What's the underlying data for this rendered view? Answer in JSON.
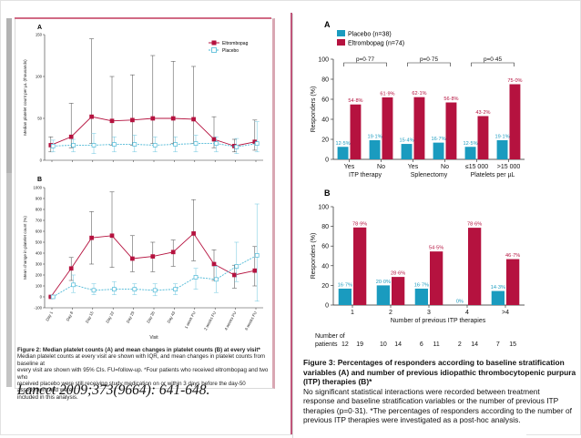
{
  "citation": "Lancet 2009;373(9664): 641-648.",
  "figure2": {
    "caption_title": "Figure 2: Median platelet counts (A) and mean changes in platelet counts (B) at every visit*",
    "caption_lines": [
      "Median platelet counts at every visit are shown with IQR, and mean changes in platelet counts from baseline at",
      "every visit are shown with 95% CIs. FU=follow-up. *Four patients who received eltrombopag and two who",
      "received placebo were still receiving study medication on or within 3 days before the day-50 assessment and were",
      "included in this analysis."
    ],
    "panel_a_label": "A",
    "panel_b_label": "B",
    "legend": [
      "Eltrombopag",
      "Placebo"
    ],
    "visits": [
      "Day 1",
      "Day 8",
      "Day 15",
      "Day 22",
      "Day 29",
      "Day 36",
      "Day 43",
      "1 week FU",
      "2 weeks FU",
      "4 weeks FU",
      "6 weeks FU"
    ],
    "colors": {
      "eltrombopag": "#b5123f",
      "placebo": "#4bb8d6"
    }
  },
  "chart_data": [
    {
      "type": "line",
      "title": "A",
      "xlabel": "",
      "ylabel": "Median platelet count per µL (thousands)",
      "ylim": [
        0,
        150
      ],
      "yticks": [
        0,
        50,
        100,
        150
      ],
      "categories": [
        "Day 1",
        "Day 8",
        "Day 15",
        "Day 22",
        "Day 29",
        "Day 36",
        "Day 43",
        "1 week FU",
        "2 weeks FU",
        "4 weeks FU",
        "6 weeks FU"
      ],
      "series": [
        {
          "name": "Eltrombopag",
          "values": [
            18,
            28,
            52,
            47,
            48,
            50,
            50,
            49,
            25,
            17,
            22
          ],
          "low": [
            10,
            15,
            20,
            18,
            18,
            20,
            20,
            20,
            15,
            10,
            12
          ],
          "high": [
            28,
            68,
            145,
            100,
            102,
            125,
            118,
            112,
            52,
            25,
            48
          ]
        },
        {
          "name": "Placebo",
          "values": [
            17,
            18,
            18,
            19,
            19,
            18,
            19,
            20,
            20,
            16,
            20
          ],
          "low": [
            10,
            10,
            8,
            10,
            10,
            10,
            10,
            10,
            10,
            8,
            10
          ],
          "high": [
            24,
            25,
            32,
            28,
            30,
            28,
            28,
            30,
            28,
            26,
            46
          ]
        }
      ]
    },
    {
      "type": "line",
      "title": "B",
      "xlabel": "Visit",
      "ylabel": "Mean change in platelet count (%)",
      "ylim": [
        -100,
        1000
      ],
      "yticks": [
        -100,
        0,
        100,
        200,
        300,
        400,
        500,
        600,
        700,
        800,
        900,
        1000
      ],
      "categories": [
        "Day 1",
        "Day 8",
        "Day 15",
        "Day 22",
        "Day 29",
        "Day 36",
        "Day 43",
        "1 week FU",
        "2 weeks FU",
        "4 weeks FU",
        "6 weeks FU"
      ],
      "series": [
        {
          "name": "Eltrombopag",
          "values": [
            0,
            260,
            540,
            560,
            350,
            370,
            410,
            580,
            300,
            200,
            240
          ],
          "low": [
            0,
            150,
            300,
            270,
            230,
            230,
            280,
            330,
            150,
            80,
            100
          ],
          "high": [
            0,
            360,
            780,
            960,
            560,
            500,
            520,
            890,
            430,
            290,
            460
          ]
        },
        {
          "name": "Placebo",
          "values": [
            0,
            110,
            60,
            70,
            70,
            60,
            70,
            180,
            160,
            280,
            380
          ],
          "low": [
            0,
            40,
            20,
            20,
            20,
            10,
            20,
            70,
            40,
            140,
            -40
          ],
          "high": [
            0,
            200,
            120,
            140,
            120,
            120,
            120,
            260,
            280,
            500,
            850
          ]
        }
      ]
    },
    {
      "type": "bar",
      "title": "A",
      "ylabel": "Responders (%)",
      "ylim": [
        0,
        100
      ],
      "yticks": [
        0,
        20,
        40,
        60,
        80,
        100
      ],
      "categories": [
        "Yes",
        "No",
        "Yes",
        "No",
        "≤15 000",
        ">15 000"
      ],
      "groups": [
        "ITP therapy",
        "Splenectomy",
        "Platelets per µL"
      ],
      "legend": [
        "Placebo (n=38)",
        "Eltrombopag (n=74)"
      ],
      "series": [
        {
          "name": "Placebo",
          "values": [
            12.5,
            19.1,
            15.4,
            16.7,
            12.5,
            19.1
          ],
          "labels": [
            "12·5%",
            "19·1%",
            "15·4%",
            "16·7%",
            "12·5%",
            "19·1%"
          ]
        },
        {
          "name": "Eltrombopag",
          "values": [
            54.8,
            61.9,
            62.1,
            56.8,
            43.2,
            75.0
          ],
          "labels": [
            "54·8%",
            "61·9%",
            "62·1%",
            "56·8%",
            "43·2%",
            "75·0%"
          ]
        }
      ],
      "annotations": [
        "p=0·77",
        "p=0·75",
        "p=0·45"
      ]
    },
    {
      "type": "bar",
      "title": "B",
      "xlabel": "Number of previous ITP therapies",
      "ylabel": "Responders (%)",
      "ylim": [
        0,
        100
      ],
      "yticks": [
        0,
        20,
        40,
        60,
        80,
        100
      ],
      "categories": [
        "1",
        "2",
        "3",
        "4",
        ">4"
      ],
      "series": [
        {
          "name": "Placebo",
          "values": [
            16.7,
            20.0,
            16.7,
            0,
            14.3
          ],
          "labels": [
            "16·7%",
            "20·0%",
            "16·7%",
            "0%",
            "14·3%"
          ]
        },
        {
          "name": "Eltrombopag",
          "values": [
            78.9,
            28.6,
            54.5,
            78.6,
            46.7
          ],
          "labels": [
            "78·9%",
            "28·6%",
            "54·5%",
            "78·6%",
            "46·7%"
          ]
        }
      ],
      "patients_label": [
        "Number of",
        "patients"
      ],
      "patients": [
        [
          "12",
          "19"
        ],
        [
          "10",
          "14"
        ],
        [
          "6",
          "11"
        ],
        [
          "2",
          "14"
        ],
        [
          "7",
          "15"
        ]
      ]
    }
  ],
  "figure3": {
    "caption_lines": [
      "Figure 3: Percentages of responders according to baseline stratification",
      "variables (A) and number of previous idiopathic thrombocytopenic purpura",
      "(ITP) therapies (B)*",
      "No significant statistical interactions were recorded between treatment",
      "response and baseline stratification variables or the number of previous ITP",
      "therapies (p=0·31). *The percentages of responders according to the number of",
      "previous ITP therapies were investigated as a post-hoc analysis."
    ],
    "colors": {
      "placebo": "#1a9bbf",
      "eltrombopag": "#b5123f"
    }
  }
}
